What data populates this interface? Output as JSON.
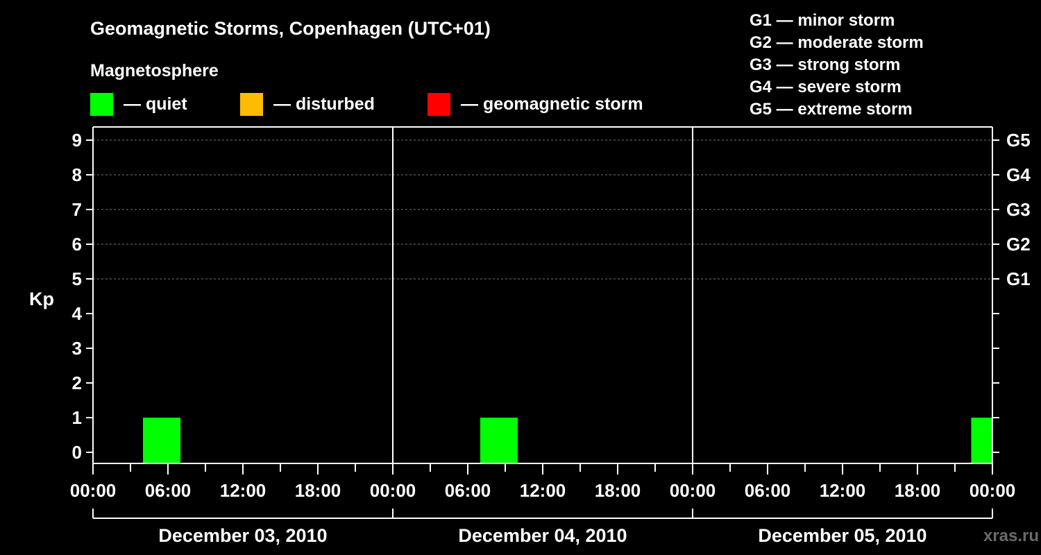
{
  "chart_data": {
    "type": "bar",
    "title": "Geomagnetic Storms, Copenhagen (UTC+01)",
    "ylabel": "Kp",
    "ylim": [
      0,
      9
    ],
    "y_ticks": [
      "0",
      "1",
      "2",
      "3",
      "4",
      "5",
      "6",
      "7",
      "8",
      "9"
    ],
    "g_scale": [
      {
        "kp": 5,
        "label": "G1"
      },
      {
        "kp": 6,
        "label": "G2"
      },
      {
        "kp": 7,
        "label": "G3"
      },
      {
        "kp": 8,
        "label": "G4"
      },
      {
        "kp": 9,
        "label": "G5"
      }
    ],
    "x_ticks": [
      "00:00",
      "06:00",
      "12:00",
      "18:00",
      "00:00",
      "06:00",
      "12:00",
      "18:00",
      "00:00",
      "06:00",
      "12:00",
      "18:00",
      "00:00"
    ],
    "days": [
      "December 03, 2010",
      "December 04, 2010",
      "December 05, 2010"
    ],
    "hours_total": 72,
    "bars": [
      {
        "start_hour": 4,
        "end_hour": 7,
        "kp": 1,
        "status": "quiet"
      },
      {
        "start_hour": 31,
        "end_hour": 34,
        "kp": 1,
        "status": "quiet"
      },
      {
        "start_hour": 70.3,
        "end_hour": 72,
        "kp": 1,
        "status": "quiet"
      }
    ],
    "magnetosphere_legend": {
      "title": "Magnetosphere",
      "items": [
        {
          "key": "quiet",
          "label": "— quiet",
          "color": "#00ff00"
        },
        {
          "key": "disturbed",
          "label": "— disturbed",
          "color": "#ffbb00"
        },
        {
          "key": "storm",
          "label": "— geomagnetic storm",
          "color": "#ff0000"
        }
      ]
    },
    "storm_legend": [
      "G1 — minor storm",
      "G2 — moderate storm",
      "G3 — strong storm",
      "G4 — severe storm",
      "G5 — extreme storm"
    ],
    "grid": true
  },
  "watermark": "xras.ru"
}
